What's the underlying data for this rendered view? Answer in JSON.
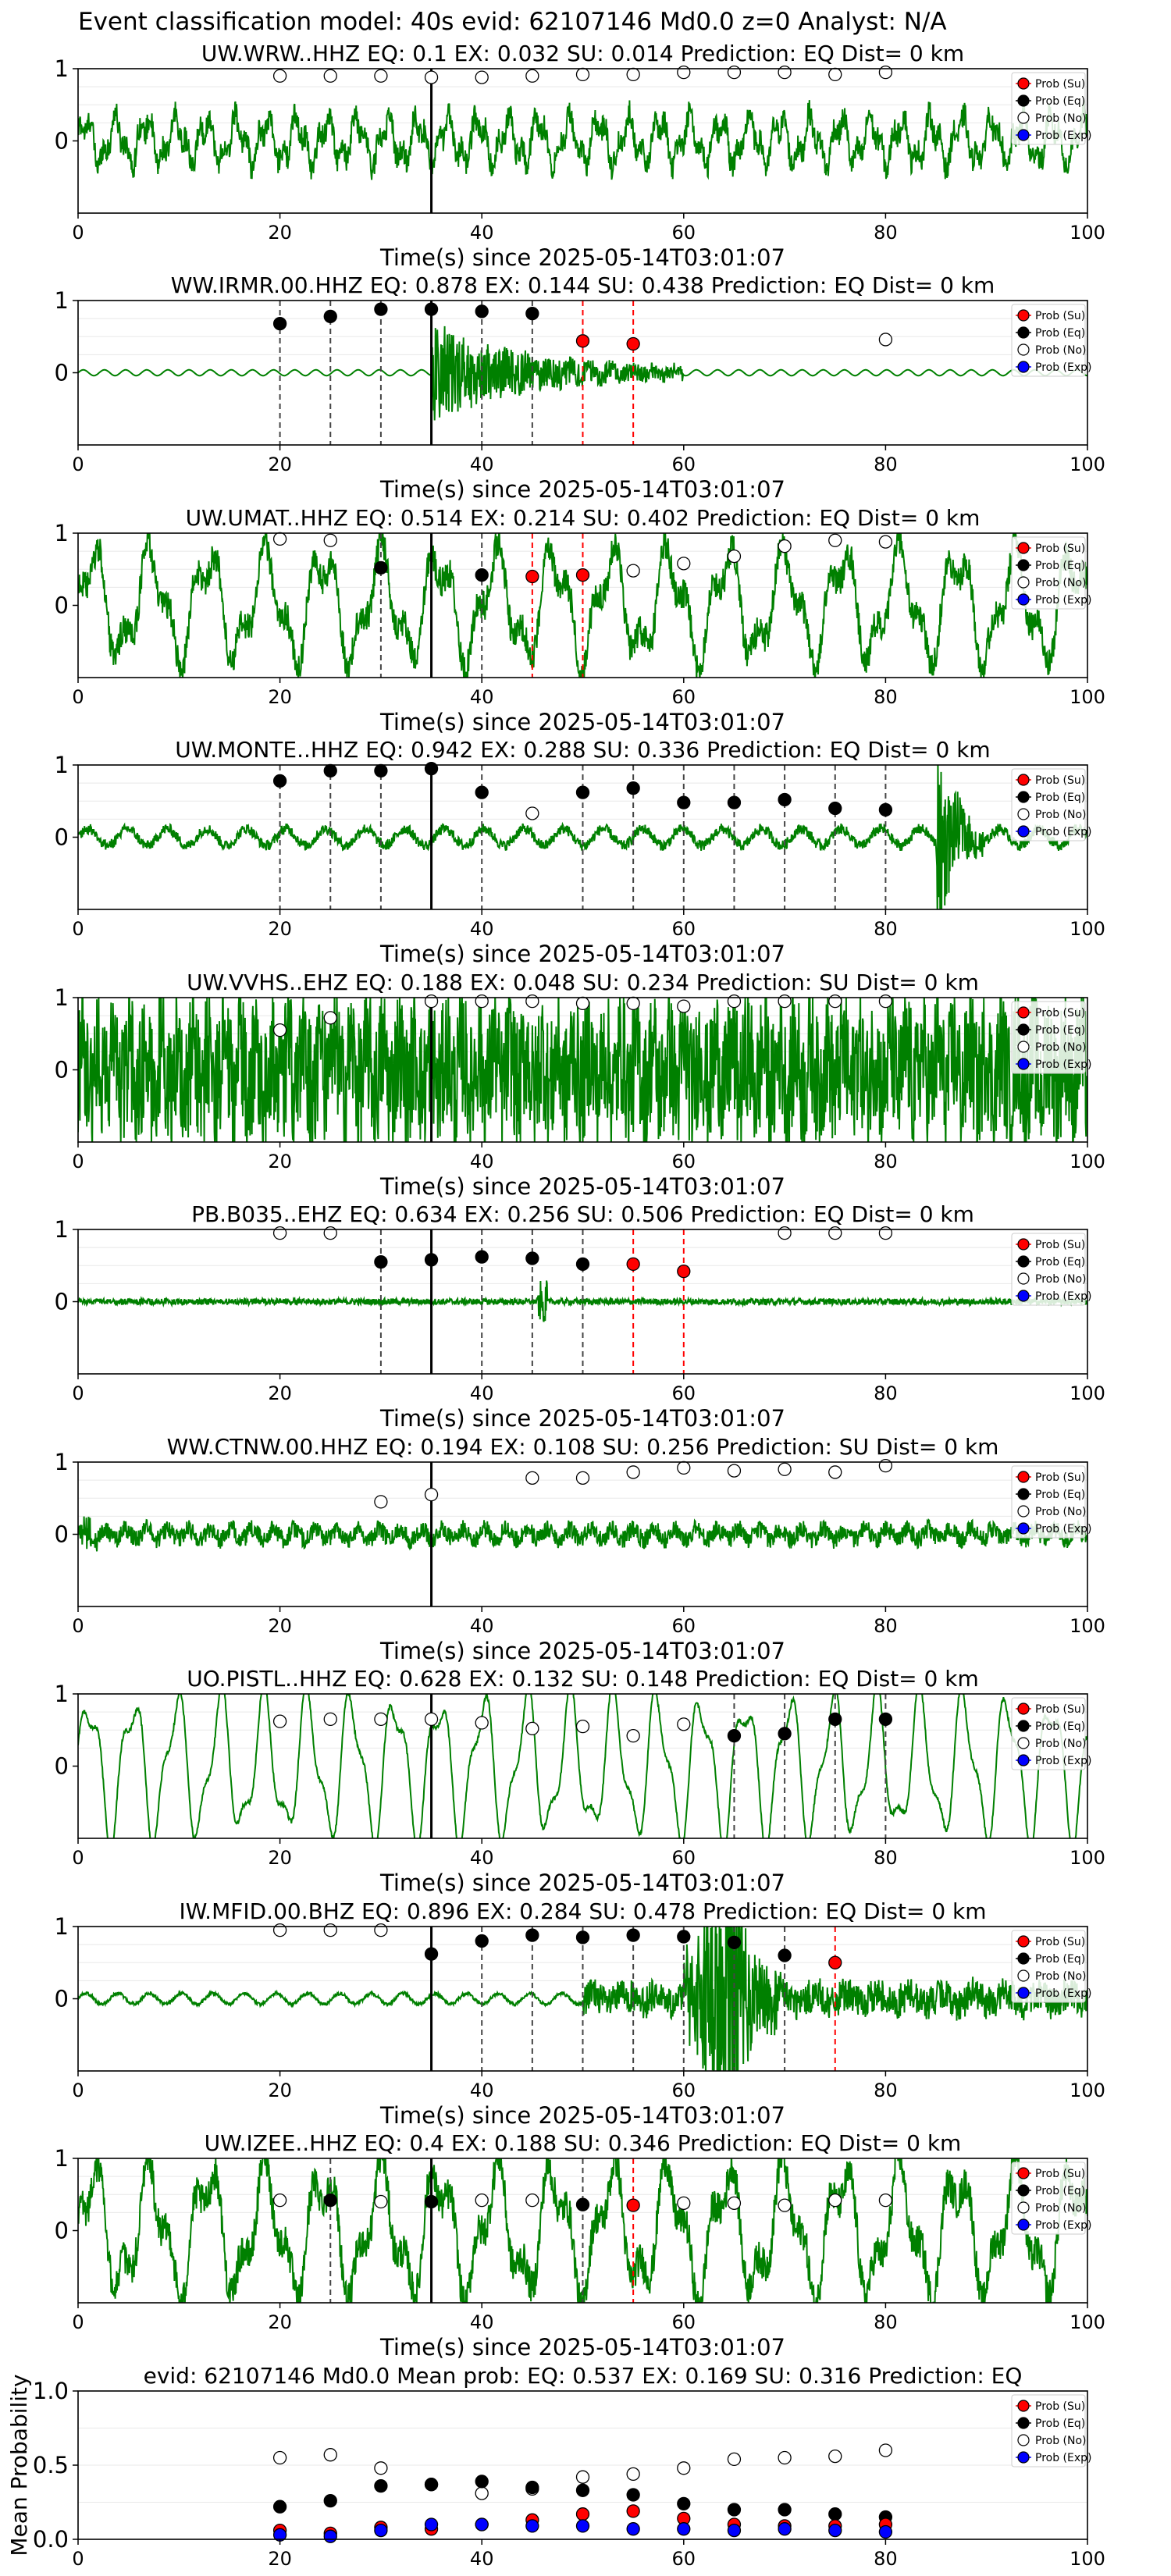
{
  "figure_title": "Event classification model: 40s evid: 62107146 Md0.0 z=0 Analyst: N/A",
  "legend_labels": [
    "Prob (Su)",
    "Prob (Eq)",
    "Prob (No)",
    "Prob (Exp)"
  ],
  "colors": {
    "trace": "#008000",
    "su": "#ff0000",
    "eq": "#000000",
    "no": "#ffffff",
    "exp": "#0000ff",
    "origin_line": "#000000",
    "eq_vline": "#000000",
    "su_vline": "#ff0000"
  },
  "chart_data": [
    {
      "type": "line",
      "title": "UW.WRW..HHZ   EQ: 0.1  EX: 0.032  SU: 0.014    Prediction: EQ    Dist= 0 km",
      "xlabel": "Time(s) since 2025-05-14T03:01:07",
      "xlim": [
        0,
        100
      ],
      "ylim": [
        -1,
        1
      ],
      "xticks": [
        0,
        20,
        40,
        60,
        80,
        100
      ],
      "yticks": [
        1,
        0
      ],
      "origin_time": 35,
      "trace_style": "noise",
      "trace_amplitude": 0.45,
      "prob_x": [
        20,
        25,
        30,
        35,
        40,
        45,
        50,
        55,
        60,
        65,
        70,
        75,
        80
      ],
      "su": [
        0,
        0,
        0,
        0,
        0,
        0,
        0,
        0,
        0,
        0,
        0,
        0,
        0
      ],
      "eq": [
        0,
        0,
        0,
        0,
        0,
        0,
        0,
        0,
        0,
        0,
        0,
        0,
        0
      ],
      "no": [
        0.9,
        0.9,
        0.9,
        0.88,
        0.88,
        0.9,
        0.92,
        0.92,
        0.95,
        0.95,
        0.95,
        0.92,
        0.95
      ],
      "points": [
        {
          "x": 20,
          "y": 0.9,
          "c": "no"
        },
        {
          "x": 25,
          "y": 0.9,
          "c": "no"
        },
        {
          "x": 30,
          "y": 0.9,
          "c": "no"
        },
        {
          "x": 35,
          "y": 0.88,
          "c": "no"
        },
        {
          "x": 40,
          "y": 0.88,
          "c": "no"
        },
        {
          "x": 45,
          "y": 0.9,
          "c": "no"
        },
        {
          "x": 50,
          "y": 0.92,
          "c": "no"
        },
        {
          "x": 55,
          "y": 0.92,
          "c": "no"
        },
        {
          "x": 60,
          "y": 0.95,
          "c": "no"
        },
        {
          "x": 65,
          "y": 0.95,
          "c": "no"
        },
        {
          "x": 70,
          "y": 0.95,
          "c": "no"
        },
        {
          "x": 75,
          "y": 0.92,
          "c": "no"
        },
        {
          "x": 80,
          "y": 0.95,
          "c": "no"
        }
      ],
      "vlines_eq": [],
      "vlines_su": []
    },
    {
      "type": "line",
      "title": "WW.IRMR.00.HHZ   EQ: 0.878  EX: 0.144  SU: 0.438   Prediction: EQ    Dist= 0 km",
      "xlabel": "Time(s) since 2025-05-14T03:01:07",
      "xlim": [
        0,
        100
      ],
      "ylim": [
        -1,
        1
      ],
      "xticks": [
        0,
        20,
        40,
        60,
        80,
        100
      ],
      "yticks": [
        1,
        0
      ],
      "origin_time": 35,
      "trace_style": "quiet_burst",
      "trace_amplitude": 0.3,
      "points": [
        {
          "x": 20,
          "y": 0.68,
          "c": "eq"
        },
        {
          "x": 25,
          "y": 0.78,
          "c": "eq"
        },
        {
          "x": 30,
          "y": 0.88,
          "c": "eq"
        },
        {
          "x": 35,
          "y": 0.88,
          "c": "eq"
        },
        {
          "x": 40,
          "y": 0.85,
          "c": "eq"
        },
        {
          "x": 45,
          "y": 0.82,
          "c": "eq"
        },
        {
          "x": 50,
          "y": 0.44,
          "c": "su"
        },
        {
          "x": 55,
          "y": 0.4,
          "c": "su"
        },
        {
          "x": 80,
          "y": 0.46,
          "c": "no"
        }
      ],
      "vlines_eq": [
        20,
        25,
        30,
        40,
        45
      ],
      "vlines_su": [
        50,
        55
      ]
    },
    {
      "type": "line",
      "title": "UW.UMAT..HHZ   EQ: 0.514  EX: 0.214  SU: 0.402   Prediction: EQ    Dist= 0 km",
      "xlabel": "Time(s) since 2025-05-14T03:01:07",
      "xlim": [
        0,
        100
      ],
      "ylim": [
        -1,
        1
      ],
      "xticks": [
        0,
        20,
        40,
        60,
        80,
        100
      ],
      "yticks": [
        1,
        0
      ],
      "origin_time": 35,
      "trace_style": "lowfreq",
      "trace_amplitude": 0.7,
      "points": [
        {
          "x": 20,
          "y": 0.92,
          "c": "no"
        },
        {
          "x": 25,
          "y": 0.9,
          "c": "no"
        },
        {
          "x": 30,
          "y": 0.52,
          "c": "eq"
        },
        {
          "x": 40,
          "y": 0.42,
          "c": "eq"
        },
        {
          "x": 45,
          "y": 0.4,
          "c": "su"
        },
        {
          "x": 50,
          "y": 0.42,
          "c": "su"
        },
        {
          "x": 55,
          "y": 0.48,
          "c": "no"
        },
        {
          "x": 60,
          "y": 0.58,
          "c": "no"
        },
        {
          "x": 65,
          "y": 0.68,
          "c": "no"
        },
        {
          "x": 70,
          "y": 0.82,
          "c": "no"
        },
        {
          "x": 75,
          "y": 0.9,
          "c": "no"
        },
        {
          "x": 80,
          "y": 0.88,
          "c": "no"
        }
      ],
      "vlines_eq": [
        30,
        40
      ],
      "vlines_su": [
        45,
        50
      ]
    },
    {
      "type": "line",
      "title": "UW.MONTE..HHZ   EQ: 0.942  EX: 0.288  SU: 0.336   Prediction: EQ    Dist= 0 km",
      "xlabel": "Time(s) since 2025-05-14T03:01:07",
      "xlim": [
        0,
        100
      ],
      "ylim": [
        -1,
        1
      ],
      "xticks": [
        0,
        20,
        40,
        60,
        80,
        100
      ],
      "yticks": [
        1,
        0
      ],
      "origin_time": 35,
      "trace_style": "moderate_late_burst",
      "trace_amplitude": 0.35,
      "points": [
        {
          "x": 20,
          "y": 0.78,
          "c": "eq"
        },
        {
          "x": 25,
          "y": 0.92,
          "c": "eq"
        },
        {
          "x": 30,
          "y": 0.92,
          "c": "eq"
        },
        {
          "x": 35,
          "y": 0.95,
          "c": "eq"
        },
        {
          "x": 40,
          "y": 0.62,
          "c": "eq"
        },
        {
          "x": 45,
          "y": 0.33,
          "c": "no"
        },
        {
          "x": 50,
          "y": 0.62,
          "c": "eq"
        },
        {
          "x": 55,
          "y": 0.68,
          "c": "eq"
        },
        {
          "x": 60,
          "y": 0.48,
          "c": "eq"
        },
        {
          "x": 65,
          "y": 0.48,
          "c": "eq"
        },
        {
          "x": 70,
          "y": 0.52,
          "c": "eq"
        },
        {
          "x": 75,
          "y": 0.4,
          "c": "eq"
        },
        {
          "x": 80,
          "y": 0.38,
          "c": "eq"
        }
      ],
      "vlines_eq": [
        20,
        25,
        30,
        40,
        50,
        55,
        60,
        65,
        70,
        75,
        80
      ],
      "vlines_su": []
    },
    {
      "type": "line",
      "title": "UW.VVHS..EHZ   EQ: 0.188  EX: 0.048  SU: 0.234    Prediction: SU    Dist= 0 km",
      "xlabel": "Time(s) since 2025-05-14T03:01:07",
      "xlim": [
        0,
        100
      ],
      "ylim": [
        -1,
        1
      ],
      "xticks": [
        0,
        20,
        40,
        60,
        80,
        100
      ],
      "yticks": [
        1,
        0
      ],
      "origin_time": 35,
      "trace_style": "highnoise",
      "trace_amplitude": 0.85,
      "points": [
        {
          "x": 20,
          "y": 0.55,
          "c": "no"
        },
        {
          "x": 25,
          "y": 0.72,
          "c": "no"
        },
        {
          "x": 35,
          "y": 0.95,
          "c": "no"
        },
        {
          "x": 40,
          "y": 0.95,
          "c": "no"
        },
        {
          "x": 45,
          "y": 0.95,
          "c": "no"
        },
        {
          "x": 50,
          "y": 0.92,
          "c": "no"
        },
        {
          "x": 55,
          "y": 0.92,
          "c": "no"
        },
        {
          "x": 60,
          "y": 0.88,
          "c": "no"
        },
        {
          "x": 65,
          "y": 0.95,
          "c": "no"
        },
        {
          "x": 70,
          "y": 0.95,
          "c": "no"
        },
        {
          "x": 75,
          "y": 0.95,
          "c": "no"
        },
        {
          "x": 80,
          "y": 0.95,
          "c": "no"
        }
      ],
      "vlines_eq": [],
      "vlines_su": []
    },
    {
      "type": "line",
      "title": "PB.B035..EHZ   EQ: 0.634  EX: 0.256  SU: 0.506    Prediction: EQ    Dist= 0 km",
      "xlabel": "Time(s) since 2025-05-14T03:01:07",
      "xlim": [
        0,
        100
      ],
      "ylim": [
        -1,
        1
      ],
      "xticks": [
        0,
        20,
        40,
        60,
        80,
        100
      ],
      "yticks": [
        1,
        0
      ],
      "origin_time": 35,
      "trace_style": "fine_noise_spike",
      "trace_amplitude": 0.15,
      "points": [
        {
          "x": 20,
          "y": 0.95,
          "c": "no"
        },
        {
          "x": 25,
          "y": 0.95,
          "c": "no"
        },
        {
          "x": 30,
          "y": 0.55,
          "c": "eq"
        },
        {
          "x": 35,
          "y": 0.58,
          "c": "eq"
        },
        {
          "x": 40,
          "y": 0.62,
          "c": "eq"
        },
        {
          "x": 45,
          "y": 0.6,
          "c": "eq"
        },
        {
          "x": 50,
          "y": 0.52,
          "c": "eq"
        },
        {
          "x": 55,
          "y": 0.52,
          "c": "su"
        },
        {
          "x": 60,
          "y": 0.42,
          "c": "su"
        },
        {
          "x": 70,
          "y": 0.95,
          "c": "no"
        },
        {
          "x": 75,
          "y": 0.95,
          "c": "no"
        },
        {
          "x": 80,
          "y": 0.95,
          "c": "no"
        }
      ],
      "vlines_eq": [
        30,
        40,
        45,
        50
      ],
      "vlines_su": [
        55,
        60
      ]
    },
    {
      "type": "line",
      "title": "WW.CTNW.00.HHZ   EQ: 0.194  EX: 0.108  SU: 0.256   Prediction: SU    Dist= 0 km",
      "xlabel": "Time(s) since 2025-05-14T03:01:07",
      "xlim": [
        0,
        100
      ],
      "ylim": [
        -1,
        1
      ],
      "xticks": [
        0,
        20,
        40,
        60,
        80,
        100
      ],
      "yticks": [
        1,
        0
      ],
      "origin_time": 35,
      "trace_style": "midnoise",
      "trace_amplitude": 0.3,
      "points": [
        {
          "x": 30,
          "y": 0.45,
          "c": "no"
        },
        {
          "x": 35,
          "y": 0.55,
          "c": "no"
        },
        {
          "x": 45,
          "y": 0.78,
          "c": "no"
        },
        {
          "x": 50,
          "y": 0.78,
          "c": "no"
        },
        {
          "x": 55,
          "y": 0.86,
          "c": "no"
        },
        {
          "x": 60,
          "y": 0.92,
          "c": "no"
        },
        {
          "x": 65,
          "y": 0.88,
          "c": "no"
        },
        {
          "x": 70,
          "y": 0.9,
          "c": "no"
        },
        {
          "x": 75,
          "y": 0.86,
          "c": "no"
        },
        {
          "x": 80,
          "y": 0.95,
          "c": "no"
        }
      ],
      "vlines_eq": [],
      "vlines_su": []
    },
    {
      "type": "line",
      "title": "UO.PISTL..HHZ   EQ: 0.628  EX: 0.132  SU: 0.148    Prediction: EQ    Dist= 0 km",
      "xlabel": "Time(s) since 2025-05-14T03:01:07",
      "xlim": [
        0,
        100
      ],
      "ylim": [
        -1,
        1
      ],
      "xticks": [
        0,
        20,
        40,
        60,
        80,
        100
      ],
      "yticks": [
        1,
        0
      ],
      "origin_time": 35,
      "trace_style": "smoothwave",
      "trace_amplitude": 0.75,
      "points": [
        {
          "x": 20,
          "y": 0.62,
          "c": "no"
        },
        {
          "x": 25,
          "y": 0.65,
          "c": "no"
        },
        {
          "x": 30,
          "y": 0.65,
          "c": "no"
        },
        {
          "x": 35,
          "y": 0.65,
          "c": "no"
        },
        {
          "x": 40,
          "y": 0.6,
          "c": "no"
        },
        {
          "x": 45,
          "y": 0.52,
          "c": "no"
        },
        {
          "x": 50,
          "y": 0.55,
          "c": "no"
        },
        {
          "x": 55,
          "y": 0.42,
          "c": "no"
        },
        {
          "x": 60,
          "y": 0.58,
          "c": "no"
        },
        {
          "x": 65,
          "y": 0.42,
          "c": "eq"
        },
        {
          "x": 70,
          "y": 0.45,
          "c": "eq"
        },
        {
          "x": 75,
          "y": 0.65,
          "c": "eq"
        },
        {
          "x": 80,
          "y": 0.65,
          "c": "eq"
        }
      ],
      "vlines_eq": [
        65,
        70,
        75,
        80
      ],
      "vlines_su": []
    },
    {
      "type": "line",
      "title": "IW.MFID.00.BHZ   EQ: 0.896  EX: 0.284  SU: 0.478   Prediction: EQ    Dist= 0 km",
      "xlabel": "Time(s) since 2025-05-14T03:01:07",
      "xlim": [
        0,
        100
      ],
      "ylim": [
        -1,
        1
      ],
      "xticks": [
        0,
        20,
        40,
        60,
        80,
        100
      ],
      "yticks": [
        1,
        0
      ],
      "origin_time": 35,
      "trace_style": "clear_event",
      "trace_amplitude": 0.9,
      "points": [
        {
          "x": 20,
          "y": 0.95,
          "c": "no"
        },
        {
          "x": 25,
          "y": 0.95,
          "c": "no"
        },
        {
          "x": 30,
          "y": 0.95,
          "c": "no"
        },
        {
          "x": 35,
          "y": 0.62,
          "c": "eq"
        },
        {
          "x": 40,
          "y": 0.8,
          "c": "eq"
        },
        {
          "x": 45,
          "y": 0.88,
          "c": "eq"
        },
        {
          "x": 50,
          "y": 0.85,
          "c": "eq"
        },
        {
          "x": 55,
          "y": 0.88,
          "c": "eq"
        },
        {
          "x": 60,
          "y": 0.86,
          "c": "eq"
        },
        {
          "x": 65,
          "y": 0.78,
          "c": "eq"
        },
        {
          "x": 70,
          "y": 0.6,
          "c": "eq"
        },
        {
          "x": 75,
          "y": 0.5,
          "c": "su"
        }
      ],
      "vlines_eq": [
        40,
        45,
        50,
        55,
        60,
        65,
        70
      ],
      "vlines_su": [
        75
      ]
    },
    {
      "type": "line",
      "title": "UW.IZEE..HHZ   EQ: 0.4  EX: 0.188  SU: 0.346   Prediction: EQ    Dist= 0 km",
      "xlabel": "Time(s) since 2025-05-14T03:01:07",
      "xlim": [
        0,
        100
      ],
      "ylim": [
        -1,
        1
      ],
      "xticks": [
        0,
        20,
        40,
        60,
        80,
        100
      ],
      "yticks": [
        1,
        0
      ],
      "origin_time": 35,
      "trace_style": "lowfreq",
      "trace_amplitude": 0.8,
      "points": [
        {
          "x": 20,
          "y": 0.42,
          "c": "no"
        },
        {
          "x": 25,
          "y": 0.42,
          "c": "eq"
        },
        {
          "x": 30,
          "y": 0.4,
          "c": "no"
        },
        {
          "x": 35,
          "y": 0.4,
          "c": "eq"
        },
        {
          "x": 40,
          "y": 0.42,
          "c": "no"
        },
        {
          "x": 45,
          "y": 0.42,
          "c": "no"
        },
        {
          "x": 50,
          "y": 0.36,
          "c": "eq"
        },
        {
          "x": 55,
          "y": 0.35,
          "c": "su"
        },
        {
          "x": 60,
          "y": 0.38,
          "c": "no"
        },
        {
          "x": 65,
          "y": 0.38,
          "c": "no"
        },
        {
          "x": 70,
          "y": 0.35,
          "c": "no"
        },
        {
          "x": 75,
          "y": 0.42,
          "c": "no"
        },
        {
          "x": 80,
          "y": 0.42,
          "c": "no"
        }
      ],
      "vlines_eq": [
        25,
        50
      ],
      "vlines_su": [
        55
      ]
    },
    {
      "type": "scatter",
      "title": "evid: 62107146  Md0.0   Mean prob:   EQ: 0.537  EX: 0.169  SU: 0.316   Prediction: EQ",
      "xlabel": "",
      "ylabel": "Mean Probability",
      "xlim": [
        0,
        100
      ],
      "ylim": [
        0,
        1
      ],
      "xticks": [
        0,
        20,
        40,
        60,
        80,
        100
      ],
      "yticks": [
        0.0,
        0.5,
        1.0
      ],
      "ytick_labels": [
        "0.0",
        "0.5",
        "1.0"
      ],
      "x": [
        20,
        25,
        30,
        35,
        40,
        45,
        50,
        55,
        60,
        65,
        70,
        75,
        80
      ],
      "series": [
        {
          "name": "Prob (No)",
          "key": "no",
          "values": [
            0.55,
            0.57,
            0.48,
            0.37,
            0.31,
            0.34,
            0.42,
            0.44,
            0.48,
            0.54,
            0.55,
            0.56,
            0.6
          ]
        },
        {
          "name": "Prob (Eq)",
          "key": "eq",
          "values": [
            0.22,
            0.26,
            0.36,
            0.37,
            0.39,
            0.35,
            0.33,
            0.3,
            0.24,
            0.2,
            0.2,
            0.17,
            0.15
          ]
        },
        {
          "name": "Prob (Su)",
          "key": "su",
          "values": [
            0.06,
            0.04,
            0.08,
            0.07,
            0.1,
            0.13,
            0.17,
            0.19,
            0.14,
            0.1,
            0.09,
            0.09,
            0.1
          ]
        },
        {
          "name": "Prob (Exp)",
          "key": "exp",
          "values": [
            0.03,
            0.02,
            0.06,
            0.1,
            0.1,
            0.09,
            0.09,
            0.07,
            0.07,
            0.06,
            0.07,
            0.06,
            0.05
          ]
        }
      ]
    }
  ]
}
